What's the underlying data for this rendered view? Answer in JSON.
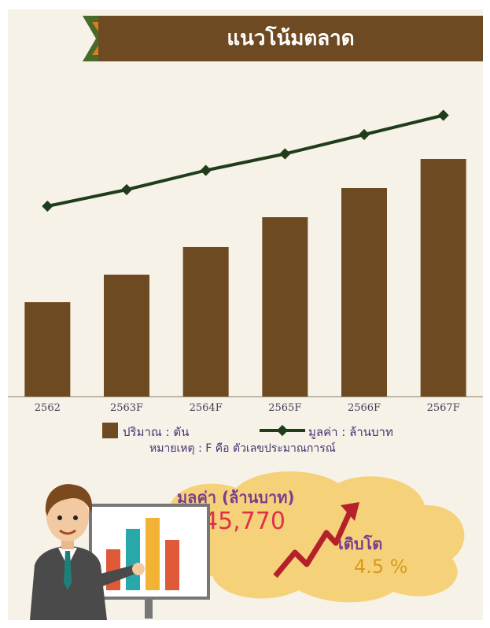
{
  "header": {
    "title": "แนวโน้มตลาด"
  },
  "chart_data": {
    "type": "bar",
    "categories": [
      "2562",
      "2563F",
      "2564F",
      "2565F",
      "2566F",
      "2567F"
    ],
    "series": [
      {
        "name": "ปริมาณ : ตัน",
        "kind": "bar",
        "values": [
          120,
          155,
          190,
          228,
          265,
          302
        ]
      },
      {
        "name": "มูลค่า : ล้านบาท",
        "kind": "line",
        "values": [
          40,
          46,
          53,
          59,
          66,
          73
        ]
      }
    ],
    "note": "หมายเหตุ : F คือ ตัวเลขประมาณการณ์",
    "colors": {
      "bar": "#6e4a22",
      "line": "#1f3d1a"
    }
  },
  "summary": {
    "value_label": "มูลค่า (ล้านบาท)",
    "value": "45,770",
    "growth_label": "เติบโต",
    "growth_value": "4.5 %"
  }
}
